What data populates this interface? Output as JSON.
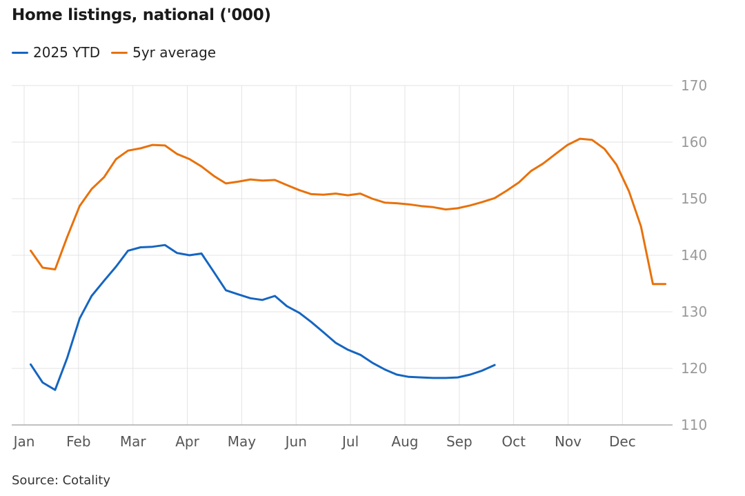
{
  "title": "Home listings, national ('000)",
  "source": "Source: Cotality",
  "legend": [
    {
      "label": "2025 YTD",
      "color": "#1565c0"
    },
    {
      "label": "5yr average",
      "color": "#e8710a"
    }
  ],
  "chart_data": {
    "type": "line",
    "title": "Home listings, national ('000)",
    "xlabel": "",
    "ylabel": "",
    "x_ticks": [
      "Jan",
      "Feb",
      "Mar",
      "Apr",
      "May",
      "Jun",
      "Jul",
      "Aug",
      "Sep",
      "Oct",
      "Nov",
      "Dec"
    ],
    "y_ticks": [
      110,
      120,
      130,
      140,
      150,
      160,
      170
    ],
    "ylim": [
      110,
      170
    ],
    "y_axis_position": "right",
    "grid": true,
    "legend_position": "top-left",
    "series": [
      {
        "name": "2025 YTD",
        "color": "#1565c0",
        "x": [
          1.12,
          1.34,
          1.57,
          1.79,
          2.02,
          2.24,
          2.47,
          2.69,
          2.91,
          3.14,
          3.36,
          3.59,
          3.81,
          4.04,
          4.26,
          4.49,
          4.71,
          4.93,
          5.16,
          5.38,
          5.61,
          5.83,
          6.06,
          6.28,
          6.5,
          6.73,
          6.95,
          7.18,
          7.4,
          7.63,
          7.85,
          8.07,
          8.3,
          8.52,
          8.75,
          8.97,
          9.2,
          9.42,
          9.65
        ],
        "y": [
          120.7,
          117.5,
          116.2,
          121.8,
          128.8,
          132.8,
          135.5,
          138.0,
          140.8,
          141.4,
          141.5,
          141.8,
          140.4,
          140.0,
          140.3,
          137.0,
          133.8,
          133.1,
          132.4,
          132.1,
          132.8,
          131.0,
          129.8,
          128.2,
          126.4,
          124.5,
          123.3,
          122.4,
          121.0,
          119.8,
          118.9,
          118.5,
          118.4,
          118.3,
          118.3,
          118.4,
          118.9,
          119.6,
          120.6
        ]
      },
      {
        "name": "5yr average",
        "color": "#e8710a",
        "x": [
          1.12,
          1.34,
          1.57,
          1.79,
          2.02,
          2.24,
          2.47,
          2.69,
          2.91,
          3.14,
          3.36,
          3.59,
          3.81,
          4.04,
          4.26,
          4.49,
          4.71,
          4.93,
          5.16,
          5.38,
          5.61,
          5.83,
          6.06,
          6.28,
          6.5,
          6.73,
          6.95,
          7.18,
          7.4,
          7.63,
          7.85,
          8.07,
          8.3,
          8.52,
          8.75,
          8.97,
          9.2,
          9.42,
          9.65,
          9.87,
          10.1,
          10.32,
          10.54,
          10.77,
          10.99,
          11.22,
          11.44,
          11.67,
          11.89,
          12.12,
          12.34,
          12.56,
          12.79
        ],
        "y": [
          140.8,
          137.8,
          137.5,
          143.2,
          148.7,
          151.7,
          153.8,
          157.0,
          158.5,
          158.9,
          159.5,
          159.4,
          157.9,
          157.0,
          155.7,
          154.0,
          152.7,
          153.0,
          153.4,
          153.2,
          153.3,
          152.4,
          151.5,
          150.8,
          150.7,
          150.9,
          150.6,
          150.9,
          150.0,
          149.3,
          149.2,
          149.0,
          148.7,
          148.5,
          148.1,
          148.3,
          148.8,
          149.4,
          150.1,
          151.4,
          152.9,
          154.9,
          156.2,
          157.9,
          159.5,
          160.6,
          160.4,
          158.8,
          156.0,
          151.3,
          145.1,
          134.9,
          134.9
        ]
      }
    ]
  }
}
